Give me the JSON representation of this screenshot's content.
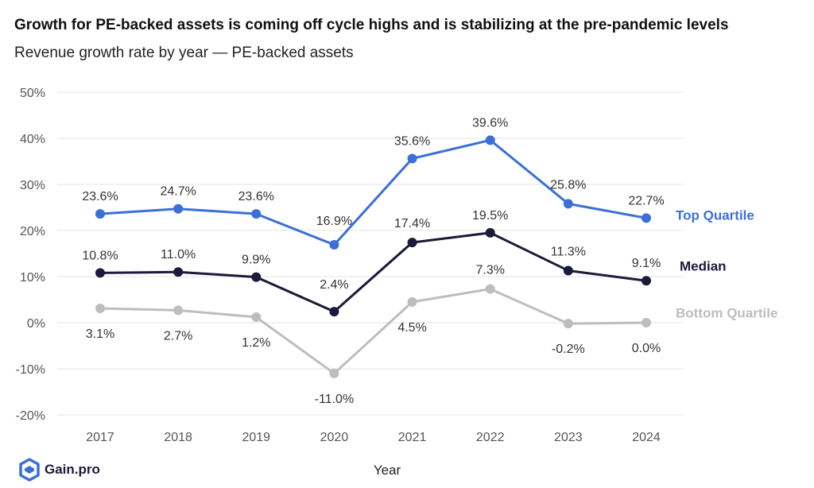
{
  "header": {
    "title": "Growth for PE-backed assets is coming off cycle highs and is stabilizing at the pre-pandemic levels",
    "subtitle": "Revenue growth rate by year — PE-backed assets"
  },
  "brand": {
    "name": "Gain.pro",
    "icon": "gain-pro-logo-icon",
    "color": "#3b6fd8"
  },
  "chart_data": {
    "type": "line",
    "title": "Growth for PE-backed assets is coming off cycle highs and is stabilizing at the pre-pandemic levels",
    "subtitle": "Revenue growth rate by year — PE-backed assets",
    "xlabel": "Year",
    "ylabel": "",
    "categories": [
      "2017",
      "2018",
      "2019",
      "2020",
      "2021",
      "2022",
      "2023",
      "2024"
    ],
    "ylim": [
      -20,
      50
    ],
    "yticks": [
      -20,
      -10,
      0,
      10,
      20,
      30,
      40,
      50
    ],
    "ytick_labels": [
      "-20%",
      "-10%",
      "0%",
      "10%",
      "20%",
      "30%",
      "40%",
      "50%"
    ],
    "grid": true,
    "legend_placement": "right (inline labels at line ends)",
    "series": [
      {
        "name": "Top Quartile",
        "color": "#3b6fd8",
        "values": [
          23.6,
          24.7,
          23.6,
          16.9,
          35.6,
          39.6,
          25.8,
          22.7
        ],
        "labels": [
          "23.6%",
          "24.7%",
          "23.6%",
          "16.9%",
          "35.6%",
          "39.6%",
          "25.8%",
          "22.7%"
        ]
      },
      {
        "name": "Median",
        "color": "#1a1a3a",
        "values": [
          10.8,
          11.0,
          9.9,
          2.4,
          17.4,
          19.5,
          11.3,
          9.1
        ],
        "labels": [
          "10.8%",
          "11.0%",
          "9.9%",
          "2.4%",
          "17.4%",
          "19.5%",
          "11.3%",
          "9.1%"
        ]
      },
      {
        "name": "Bottom Quartile",
        "color": "#bdbdbd",
        "values": [
          3.1,
          2.7,
          1.2,
          -11.0,
          4.5,
          7.3,
          -0.2,
          0.0
        ],
        "labels": [
          "3.1%",
          "2.7%",
          "1.2%",
          "-11.0%",
          "4.5%",
          "7.3%",
          "-0.2%",
          "0.0%"
        ]
      }
    ]
  }
}
